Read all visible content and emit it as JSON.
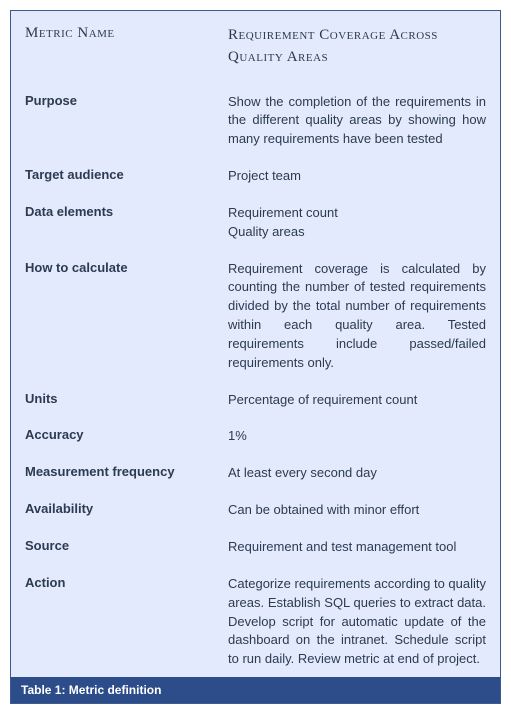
{
  "panel": {
    "background_color": "#e3eafd",
    "border_color": "#3b5a8f",
    "header_bg": "#2d4d8a",
    "text_color": "#2a3850"
  },
  "header": {
    "left": "Metric Name",
    "right": "Requirement Coverage Across Quality Areas"
  },
  "rows": [
    {
      "label": "Purpose",
      "value": "Show the completion of the requirements in the different quality areas by showing how many requirements have been tested"
    },
    {
      "label": "Target audience",
      "value": "Project team"
    },
    {
      "label": "Data elements",
      "value": "Requirement count\nQuality areas"
    },
    {
      "label": "How to calculate",
      "value": "Requirement coverage is calculated by counting the number of tested requirements divided by the total number of requirements within each quality area. Tested requirements include passed/failed requirements only."
    },
    {
      "label": "Units",
      "value": "Percentage of requirement count"
    },
    {
      "label": "Accuracy",
      "value": "1%"
    },
    {
      "label": "Measurement frequency",
      "value": "At least every second day"
    },
    {
      "label": "Availability",
      "value": "Can be obtained with minor effort"
    },
    {
      "label": "Source",
      "value": "Requirement and test management tool"
    },
    {
      "label": "Action",
      "value": "Categorize requirements according to quality areas. Establish SQL queries to extract data. Develop script for automatic update of the dashboard on the intranet. Schedule script to run daily. Review metric at end of project."
    }
  ],
  "caption": "Table 1: Metric definition"
}
